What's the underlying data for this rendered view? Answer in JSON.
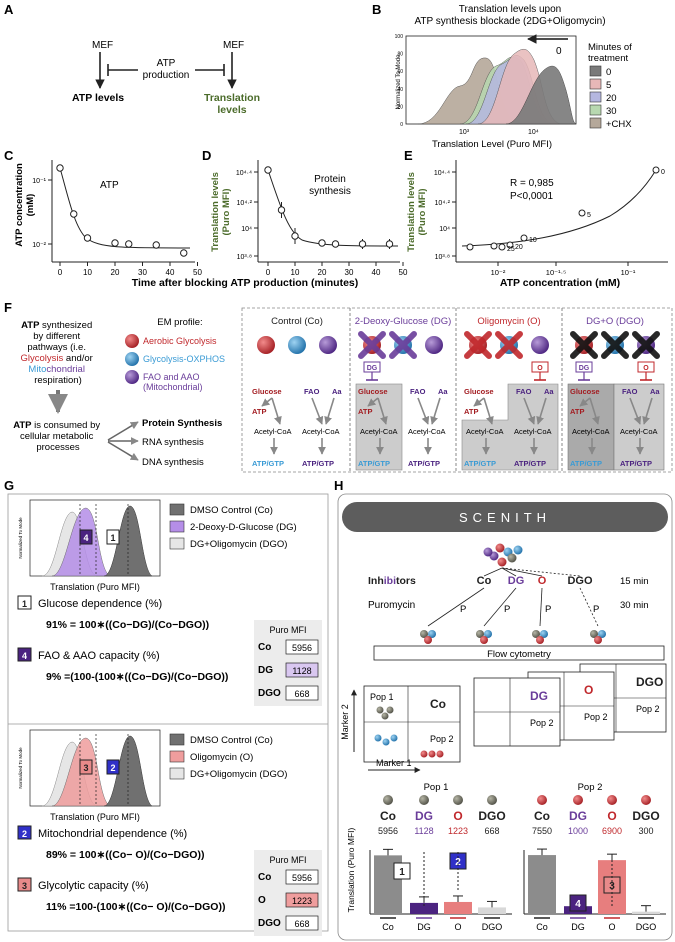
{
  "panelA": {
    "letter": "A",
    "mef_left": "MEF",
    "mef_right": "MEF",
    "atp_production": "ATP\nproduction",
    "atp_levels": "ATP levels",
    "translation_levels": "Translation\nlevels"
  },
  "panelB": {
    "letter": "B",
    "title": "Translation levels upon\nATP synthesis blockade (2DG+Oligomycin)",
    "ylabel": "Normalized To Mode",
    "xlabel": "Translation Level (Puro MFI)",
    "zero_label": "0",
    "legend_title": "Minutes of\ntreatment",
    "legend": [
      {
        "label": "0",
        "color": "#7a7a7a"
      },
      {
        "label": "5",
        "color": "#e7b8b8"
      },
      {
        "label": "20",
        "color": "#b5b7e0"
      },
      {
        "label": "30",
        "color": "#b8d8b0"
      },
      {
        "label": "+CHX",
        "color": "#b5a89a"
      }
    ],
    "x_ticks": [
      "10³",
      "10⁴"
    ],
    "y_ticks": [
      "0",
      "20",
      "40",
      "60",
      "80",
      "100"
    ]
  },
  "panelC": {
    "letter": "C",
    "ylabel": "ATP concentration\n(mM)",
    "label": "ATP",
    "y_ticks": [
      "10⁻¹",
      "10⁻²"
    ],
    "x_ticks": [
      "0",
      "10",
      "20",
      "30",
      "40",
      "50"
    ]
  },
  "panelD": {
    "letter": "D",
    "ylabel": "Translation levels\n(Puro MFI)",
    "label": "Protein\nsynthesis",
    "y_ticks": [
      "10⁴·⁴",
      "10⁴·²",
      "10⁴",
      "10³·⁸"
    ],
    "x_ticks": [
      "0",
      "10",
      "20",
      "30",
      "40",
      "50"
    ]
  },
  "panelE": {
    "letter": "E",
    "ylabel": "Translation levels\n(Puro MFI)",
    "xlabel": "ATP concentration (mM)",
    "stat_r": "R = 0,985",
    "stat_p": "P<0,0001",
    "y_ticks": [
      "10⁴·⁴",
      "10⁴·²",
      "10⁴",
      "10³·⁸"
    ],
    "x_ticks": [
      "10⁻²",
      "10⁻¹·⁵",
      "10⁻¹"
    ],
    "point_labels": [
      "0",
      "5",
      "10",
      "20",
      "25"
    ]
  },
  "x_common": "Time after blocking ATP production (minutes)",
  "panelF": {
    "letter": "F",
    "text1_a": "ATP",
    "text1_b": " synthesized\nby different\npathways (i.e.",
    "glycolysis": "Glycolysis",
    "andor": " and/or",
    "mito_a": "Mito",
    "mito_b": "chondrial",
    "respiration": "respiration)",
    "text2_a": "ATP",
    "text2_b": " is consumed by\ncellular metabolic\nprocesses",
    "em_profile": "EM profile:",
    "em_items": [
      {
        "label": "Aerobic Glycolysis",
        "color": "#c0282c"
      },
      {
        "label": "Glycolysis-OXPHOS",
        "color": "#3a9bd5"
      },
      {
        "label": "FAO and AAO\n(Mitochondrial)",
        "color": "#6a3d9a"
      }
    ],
    "processes": [
      "Protein Synthesis",
      "RNA synthesis",
      "DNA synthesis"
    ],
    "conditions": [
      {
        "title": "Control (Co)",
        "tag": ""
      },
      {
        "title": "2-Deoxy-Glucose (DG)",
        "tag": "DG"
      },
      {
        "title": "Oligomycin (O)",
        "tag": "O"
      },
      {
        "title": "DG+O (DGO)",
        "tag": "DGO"
      }
    ],
    "pathway": {
      "glucose": "Glucose",
      "fao": "FAO",
      "aa": "Aa",
      "atp": "ATP",
      "acetyl": "Acetyl-CoA",
      "atp_gtp": "ATP/GTP"
    }
  },
  "panelG": {
    "letter": "G",
    "legend_top": [
      "DMSO Control (Co)",
      "2-Deoxy-D-Glucose (DG)",
      "DG+Oligomycin (DGO)"
    ],
    "xlabel": "Translation (Puro MFI)",
    "ylabel": "Normalized To Mode",
    "item1_num": "1",
    "item1_title": "Glucose dependence (%)",
    "item1_formula": "91% = 100∗((Co−DG)/(Co−DGO))",
    "item4_num": "4",
    "item4_title": "FAO & AAO capacity (%)",
    "item4_formula": "9% =(100-(100∗((Co−DG)/(Co−DGO))",
    "mfi_header": "Puro MFI",
    "mfi_top": [
      {
        "k": "Co",
        "v": "5956"
      },
      {
        "k": "DG",
        "v": "1128"
      },
      {
        "k": "DGO",
        "v": "668"
      }
    ],
    "legend_bottom": [
      "DMSO Control (Co)",
      "Oligomycin (O)",
      "DG+Oligomycin (DGO)"
    ],
    "item2_num": "2",
    "item2_title": "Mitochondrial dependence (%)",
    "item2_formula": "89% = 100∗((Co− O)/(Co−DGO))",
    "item3_num": "3",
    "item3_title": "Glycolytic capacity (%)",
    "item3_formula": "11% =100-(100∗((Co− O)/(Co−DGO))",
    "mfi_bottom": [
      {
        "k": "Co",
        "v": "5956"
      },
      {
        "k": "O",
        "v": "1223"
      },
      {
        "k": "DGO",
        "v": "668"
      }
    ]
  },
  "panelH": {
    "letter": "H",
    "banner": "SCENITH",
    "inhibitors_a": "Inh",
    "inhibitors_b": "ibi",
    "inhibitors_c": "tors",
    "conds": [
      "Co",
      "DG",
      "O",
      "DGO"
    ],
    "min15": "15 min",
    "puromycin": "Puromycin",
    "min30": "30 min",
    "p": "P",
    "flow": "Flow cytometry",
    "marker1": "Marker 1",
    "marker2": "Marker 2",
    "pop1": "Pop 1",
    "pop2": "Pop 2",
    "ylabel": "Translation (Puro MFI)",
    "pop1_values": [
      "5956",
      "1128",
      "1223",
      "668"
    ],
    "pop2_values": [
      "7550",
      "1000",
      "6900",
      "300"
    ],
    "bar_boxes": [
      "1",
      "2",
      "4",
      "3"
    ]
  }
}
